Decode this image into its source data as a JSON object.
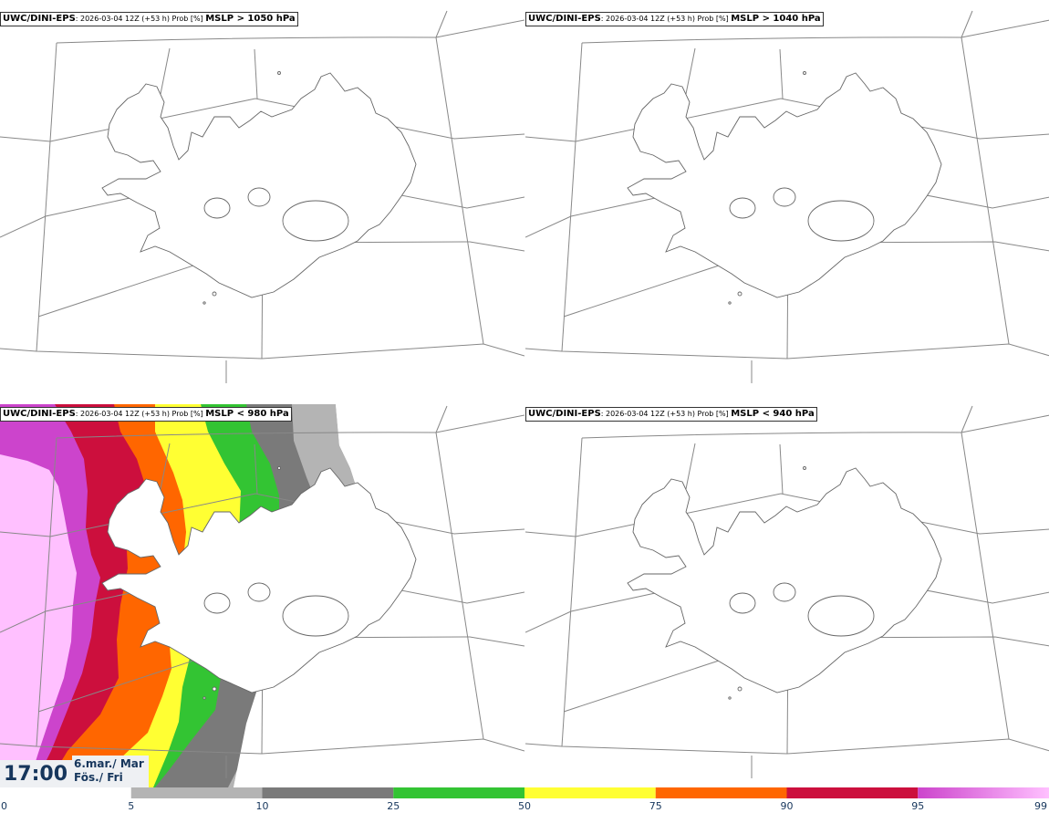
{
  "panels": [
    {
      "model": "UWC/DINI-EPS",
      "meta": ": 2026-03-04 12Z (+53 h) Prob [%] ",
      "field": "MSLP > 1050 hPa",
      "shaded": false
    },
    {
      "model": "UWC/DINI-EPS",
      "meta": ": 2026-03-04 12Z (+53 h) Prob [%] ",
      "field": "MSLP > 1040 hPa",
      "shaded": false
    },
    {
      "model": "UWC/DINI-EPS",
      "meta": ": 2026-03-04 12Z (+53 h) Prob [%] ",
      "field": "MSLP < 980 hPa",
      "shaded": true
    },
    {
      "model": "UWC/DINI-EPS",
      "meta": ": 2026-03-04 12Z (+53 h) Prob [%] ",
      "field": "MSLP < 940 hPa",
      "shaded": false
    }
  ],
  "valid_time": {
    "time": "17:00",
    "date_line1": "6.mar./ Mar",
    "date_line2": "Fös./ Fri"
  },
  "colorbar": {
    "ticks": [
      "0",
      "5",
      "10",
      "25",
      "50",
      "75",
      "90",
      "95",
      "99"
    ],
    "colors": [
      "#ffffff",
      "#b4b4b4",
      "#7a7a7a",
      "#33c433",
      "#ffff33",
      "#ff6600",
      "#cc0f3d",
      "#cc44cc",
      "#ffc0ff"
    ]
  }
}
